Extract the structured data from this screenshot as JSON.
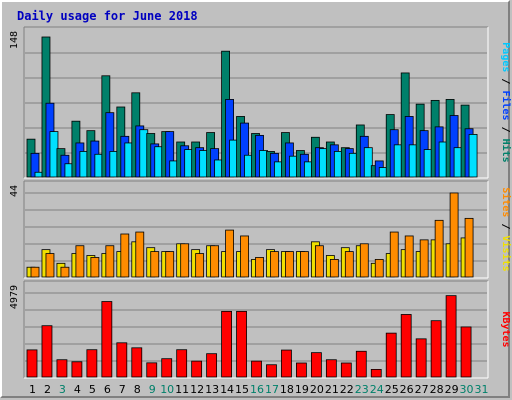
{
  "chart_data": {
    "type": "bar",
    "title": "Daily usage for June 2018",
    "categories": [
      "1",
      "2",
      "3",
      "4",
      "5",
      "6",
      "7",
      "8",
      "9",
      "10",
      "11",
      "12",
      "13",
      "14",
      "15",
      "16",
      "17",
      "18",
      "19",
      "20",
      "21",
      "22",
      "23",
      "24",
      "25",
      "26",
      "27",
      "28",
      "29",
      "30",
      "31"
    ],
    "category_colors": [
      "#000000",
      "#000000",
      "#00806a",
      "#000000",
      "#000000",
      "#000000",
      "#000000",
      "#000000",
      "#00806a",
      "#00806a",
      "#000000",
      "#000000",
      "#000000",
      "#000000",
      "#000000",
      "#00806a",
      "#00806a",
      "#000000",
      "#000000",
      "#000000",
      "#000000",
      "#000000",
      "#00806a",
      "#00806a",
      "#000000",
      "#000000",
      "#000000",
      "#000000",
      "#000000",
      "#00806a",
      "#00806a"
    ],
    "panels": [
      {
        "max_label": "148",
        "ymax": 148,
        "right_label": [
          {
            "text": "Pages",
            "color": "#00c8ff"
          },
          {
            "text": " / ",
            "color": "#000000"
          },
          {
            "text": "Files",
            "color": "#0040ff"
          },
          {
            "text": " / ",
            "color": "#000000"
          },
          {
            "text": "Hits",
            "color": "#00806a"
          }
        ],
        "series": [
          {
            "color": "#00806a",
            "values": [
              40,
              148,
              30,
              59,
              49,
              107,
              74,
              89,
              46,
              48,
              37,
              37,
              47,
              133,
              64,
              46,
              27,
              47,
              28,
              42,
              37,
              31,
              55,
              12,
              66,
              110,
              77,
              81,
              82,
              76,
              null
            ]
          },
          {
            "color": "#0040ff",
            "values": [
              25,
              78,
              23,
              36,
              38,
              68,
              43,
              54,
              35,
              48,
              33,
              31,
              30,
              82,
              57,
              44,
              25,
              36,
              24,
              31,
              34,
              30,
              43,
              17,
              50,
              64,
              49,
              53,
              65,
              51,
              null
            ]
          },
          {
            "color": "#00e0ff",
            "values": [
              5,
              48,
              14,
              27,
              24,
              27,
              36,
              50,
              32,
              17,
              29,
              28,
              18,
              39,
              23,
              28,
              16,
              22,
              16,
              30,
              27,
              25,
              31,
              10,
              34,
              34,
              29,
              37,
              31,
              45,
              null
            ]
          }
        ]
      },
      {
        "max_label": "44",
        "ymax": 44,
        "right_label": [
          {
            "text": "Sites",
            "color": "#ff8c00"
          },
          {
            "text": " / ",
            "color": "#000000"
          },
          {
            "text": "Visits",
            "color": "#f0e000"
          }
        ],
        "series": [
          {
            "color": "#f0e000",
            "values": [
              5,
              14,
              7,
              12,
              11,
              12,
              13,
              18,
              15,
              13,
              17,
              14,
              16,
              13,
              13,
              9,
              14,
              13,
              13,
              18,
              11,
              15,
              16,
              7,
              12,
              14,
              13,
              19,
              17,
              20,
              null
            ]
          },
          {
            "color": "#ff8c00",
            "values": [
              5,
              12,
              5,
              16,
              10,
              16,
              22,
              23,
              13,
              13,
              17,
              12,
              16,
              24,
              21,
              10,
              13,
              13,
              13,
              16,
              9,
              13,
              17,
              9,
              23,
              21,
              19,
              29,
              43,
              30,
              null
            ]
          }
        ]
      },
      {
        "max_label": "4979",
        "ymax": 4979,
        "right_label": [
          {
            "text": "KBytes",
            "color": "#ff0000"
          }
        ],
        "series": [
          {
            "color": "#ff0000",
            "values": [
              1570,
              2970,
              1000,
              880,
              1580,
              4370,
              1980,
              1690,
              820,
              1060,
              1580,
              920,
              1350,
              3800,
              3800,
              920,
              710,
              1560,
              810,
              1410,
              1000,
              810,
              1490,
              440,
              2540,
              3620,
              2210,
              3260,
              4710,
              2900,
              null
            ]
          }
        ]
      }
    ]
  }
}
